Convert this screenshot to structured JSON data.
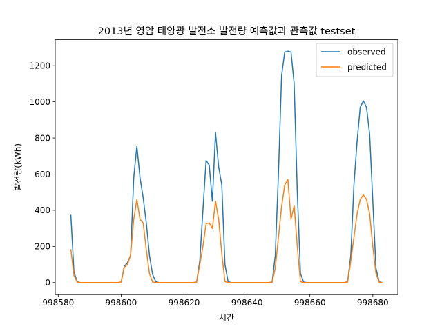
{
  "chart_data": {
    "type": "line",
    "title": "2013년 영암 태양광 발전소 발전량 예측값과 관측값 testset",
    "xlabel": "시간",
    "ylabel": "발전량(kWh)",
    "xlim": [
      998579.05,
      998687.95
    ],
    "ylim": [
      -66.5,
      1343.5
    ],
    "xticks": [
      998580,
      998600,
      998620,
      998640,
      998660,
      998680
    ],
    "xtick_labels": [
      "998580",
      "998600",
      "998620",
      "998640",
      "998660",
      "998680"
    ],
    "yticks": [
      0,
      200,
      400,
      600,
      800,
      1000,
      1200
    ],
    "ytick_labels": [
      "0",
      "200",
      "400",
      "600",
      "800",
      "1000",
      "1200"
    ],
    "legend_position": "upper right",
    "series": [
      {
        "name": "observed",
        "color": "#1f77b4",
        "x": [
          998584,
          998585,
          998586,
          998587,
          998588,
          998589,
          998590,
          998591,
          998592,
          998593,
          998594,
          998595,
          998596,
          998597,
          998598,
          998599,
          998600,
          998601,
          998602,
          998603,
          998604,
          998605,
          998606,
          998607,
          998608,
          998609,
          998610,
          998611,
          998612,
          998613,
          998614,
          998615,
          998616,
          998617,
          998618,
          998619,
          998620,
          998621,
          998622,
          998623,
          998624,
          998625,
          998626,
          998627,
          998628,
          998629,
          998630,
          998631,
          998632,
          998633,
          998634,
          998635,
          998636,
          998637,
          998638,
          998639,
          998640,
          998641,
          998642,
          998643,
          998644,
          998645,
          998646,
          998647,
          998648,
          998649,
          998650,
          998651,
          998652,
          998653,
          998654,
          998655,
          998656,
          998657,
          998658,
          998659,
          998660,
          998661,
          998662,
          998663,
          998664,
          998665,
          998666,
          998667,
          998668,
          998669,
          998670,
          998671,
          998672,
          998673,
          998674,
          998675,
          998676,
          998677,
          998678,
          998679,
          998680,
          998681,
          998682,
          998683
        ],
        "y": [
          375,
          60,
          5,
          0,
          0,
          0,
          0,
          0,
          0,
          0,
          0,
          0,
          0,
          0,
          0,
          0,
          3,
          90,
          110,
          150,
          580,
          755,
          580,
          470,
          330,
          150,
          45,
          5,
          0,
          0,
          0,
          0,
          0,
          0,
          0,
          0,
          0,
          0,
          0,
          0,
          3,
          120,
          400,
          675,
          650,
          450,
          830,
          640,
          540,
          100,
          5,
          0,
          0,
          0,
          0,
          0,
          0,
          0,
          0,
          0,
          0,
          0,
          0,
          0,
          3,
          150,
          600,
          1145,
          1275,
          1280,
          1275,
          1100,
          500,
          50,
          3,
          0,
          0,
          0,
          0,
          0,
          0,
          0,
          0,
          0,
          0,
          0,
          0,
          0,
          5,
          150,
          540,
          780,
          970,
          1005,
          970,
          820,
          450,
          80,
          5,
          0
        ]
      },
      {
        "name": "predicted",
        "color": "#ff7f0e",
        "x": [
          998584,
          998585,
          998586,
          998587,
          998588,
          998589,
          998590,
          998591,
          998592,
          998593,
          998594,
          998595,
          998596,
          998597,
          998598,
          998599,
          998600,
          998601,
          998602,
          998603,
          998604,
          998605,
          998606,
          998607,
          998608,
          998609,
          998610,
          998611,
          998612,
          998613,
          998614,
          998615,
          998616,
          998617,
          998618,
          998619,
          998620,
          998621,
          998622,
          998623,
          998624,
          998625,
          998626,
          998627,
          998628,
          998629,
          998630,
          998631,
          998632,
          998633,
          998634,
          998635,
          998636,
          998637,
          998638,
          998639,
          998640,
          998641,
          998642,
          998643,
          998644,
          998645,
          998646,
          998647,
          998648,
          998649,
          998650,
          998651,
          998652,
          998653,
          998654,
          998655,
          998656,
          998657,
          998658,
          998659,
          998660,
          998661,
          998662,
          998663,
          998664,
          998665,
          998666,
          998667,
          998668,
          998669,
          998670,
          998671,
          998672,
          998673,
          998674,
          998675,
          998676,
          998677,
          998678,
          998679,
          998680,
          998681,
          998682,
          998683
        ],
        "y": [
          185,
          40,
          3,
          0,
          0,
          0,
          0,
          0,
          0,
          0,
          0,
          0,
          0,
          0,
          0,
          0,
          3,
          85,
          100,
          150,
          350,
          460,
          350,
          330,
          180,
          50,
          3,
          0,
          0,
          0,
          0,
          0,
          0,
          0,
          0,
          0,
          0,
          0,
          0,
          0,
          3,
          100,
          200,
          325,
          330,
          300,
          450,
          350,
          160,
          5,
          0,
          0,
          0,
          0,
          0,
          0,
          0,
          0,
          0,
          0,
          0,
          0,
          0,
          0,
          3,
          80,
          250,
          420,
          540,
          570,
          350,
          425,
          200,
          5,
          0,
          0,
          0,
          0,
          0,
          0,
          0,
          0,
          0,
          0,
          0,
          0,
          0,
          0,
          3,
          120,
          250,
          380,
          460,
          485,
          460,
          380,
          200,
          50,
          3,
          0
        ]
      }
    ]
  }
}
